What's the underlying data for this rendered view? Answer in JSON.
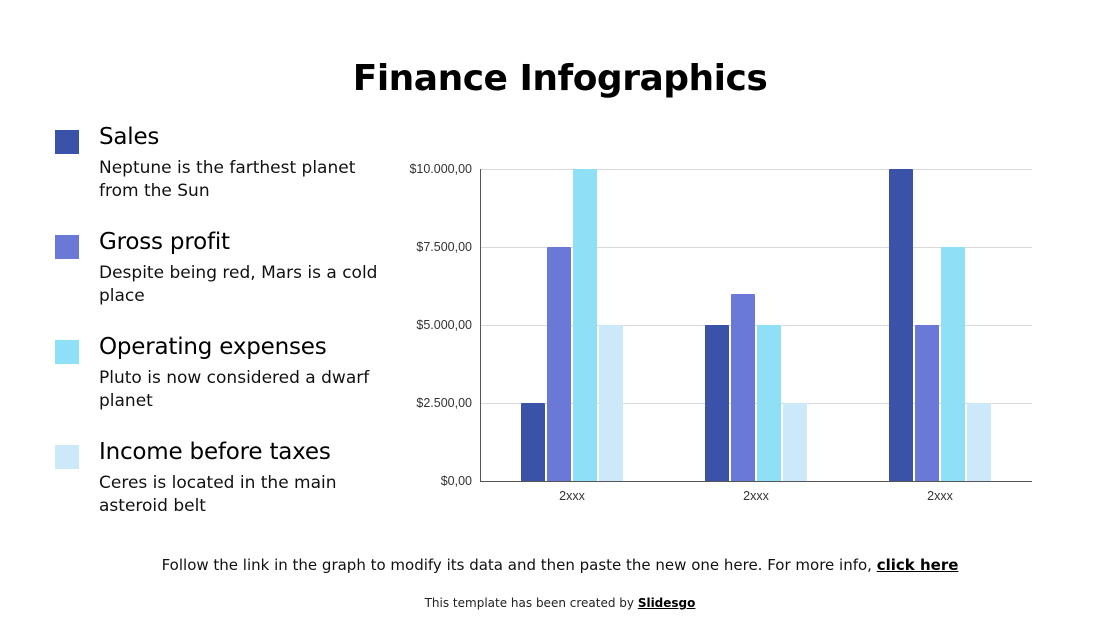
{
  "slide": {
    "title": "Finance Infographics",
    "legend": [
      {
        "label": "Sales",
        "description": "Neptune is the farthest planet from the Sun",
        "color": "#3a52a8"
      },
      {
        "label": "Gross profit",
        "description": "Despite being red, Mars is a cold place",
        "color": "#6a78d6"
      },
      {
        "label": "Operating expenses",
        "description": "Pluto is now considered a dwarf planet",
        "color": "#8fdff7"
      },
      {
        "label": "Income before taxes",
        "description": "Ceres is located in the main asteroid belt",
        "color": "#cbe9f8"
      }
    ],
    "note": {
      "text": "Follow the link in the graph to modify its data and then paste the new one here. For more info, ",
      "link": "click here"
    },
    "credit": {
      "text": "This template has been created by ",
      "link": "Slidesgo"
    }
  },
  "chart_data": {
    "type": "bar",
    "title": "",
    "xlabel": "",
    "ylabel": "",
    "categories": [
      "2xxx",
      "2xxx",
      "2xxx"
    ],
    "series": [
      {
        "name": "Sales",
        "color": "#3a52a8",
        "values": [
          2500,
          5000,
          10000
        ]
      },
      {
        "name": "Gross profit",
        "color": "#6a78d6",
        "values": [
          7500,
          6000,
          5000
        ]
      },
      {
        "name": "Operating expenses",
        "color": "#8fdff7",
        "values": [
          10000,
          5000,
          7500
        ]
      },
      {
        "name": "Income before taxes",
        "color": "#cbe9f8",
        "values": [
          5000,
          2500,
          2500
        ]
      }
    ],
    "y_ticks": [
      "$0,00",
      "$2.500,00",
      "$5.000,00",
      "$7.500,00",
      "$10.000,00"
    ],
    "ylim": [
      0,
      10000
    ],
    "grid": true,
    "legend_position": "left (custom legend)"
  }
}
